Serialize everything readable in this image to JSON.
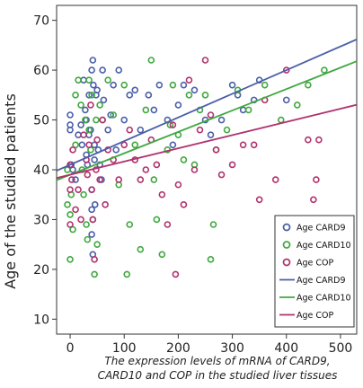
{
  "chart_data": {
    "type": "scatter",
    "xlabel_lines": [
      "The expression levels of mRNA of CARD9,",
      "CARD10 and COP in the studied liver tissues"
    ],
    "ylabel": "Age of the studied patients",
    "xlim": [
      -25,
      530
    ],
    "ylim": [
      7,
      73
    ],
    "xticks": [
      0,
      100,
      200,
      300,
      400,
      500
    ],
    "yticks": [
      10,
      20,
      30,
      40,
      50,
      60,
      70
    ],
    "xtick_labels": [
      "0",
      "100",
      "200",
      "300",
      "400",
      "500"
    ],
    "ytick_labels": [
      "10",
      "20",
      "30",
      "40",
      "50",
      "60",
      "70"
    ],
    "grid": false,
    "legend_position": "bottom-right",
    "series": [
      {
        "name": "Age CARD9",
        "color": "#4a5fa8",
        "marker": "circle-open",
        "points": [
          [
            0,
            51
          ],
          [
            0,
            49
          ],
          [
            0,
            48
          ],
          [
            2,
            41
          ],
          [
            5,
            40
          ],
          [
            10,
            38
          ],
          [
            15,
            47
          ],
          [
            20,
            49
          ],
          [
            22,
            45
          ],
          [
            25,
            58
          ],
          [
            28,
            52
          ],
          [
            30,
            50
          ],
          [
            30,
            43
          ],
          [
            32,
            41
          ],
          [
            35,
            47
          ],
          [
            35,
            55
          ],
          [
            38,
            48
          ],
          [
            40,
            60
          ],
          [
            40,
            36
          ],
          [
            40,
            32
          ],
          [
            40,
            27
          ],
          [
            42,
            62
          ],
          [
            42,
            23
          ],
          [
            43,
            57
          ],
          [
            45,
            42
          ],
          [
            45,
            45
          ],
          [
            46,
            33
          ],
          [
            48,
            55
          ],
          [
            50,
            56
          ],
          [
            52,
            44
          ],
          [
            55,
            41
          ],
          [
            58,
            38
          ],
          [
            60,
            60
          ],
          [
            62,
            54
          ],
          [
            70,
            48
          ],
          [
            75,
            51
          ],
          [
            80,
            57
          ],
          [
            85,
            44
          ],
          [
            90,
            60
          ],
          [
            100,
            50
          ],
          [
            110,
            55
          ],
          [
            120,
            56
          ],
          [
            130,
            48
          ],
          [
            145,
            55
          ],
          [
            155,
            52
          ],
          [
            165,
            57
          ],
          [
            180,
            50
          ],
          [
            190,
            45
          ],
          [
            200,
            53
          ],
          [
            210,
            57
          ],
          [
            230,
            56
          ],
          [
            250,
            50
          ],
          [
            260,
            47
          ],
          [
            280,
            50
          ],
          [
            300,
            57
          ],
          [
            310,
            55
          ],
          [
            320,
            52
          ],
          [
            340,
            54
          ],
          [
            350,
            58
          ],
          [
            400,
            54
          ]
        ],
        "fit": {
          "name": "Age CARD9",
          "intercept": 41.0,
          "slope": 0.0475
        }
      },
      {
        "name": "Age CARD10",
        "color": "#3fa83f",
        "marker": "circle-open",
        "points": [
          [
            -5,
            40
          ],
          [
            -5,
            33
          ],
          [
            0,
            22
          ],
          [
            0,
            31
          ],
          [
            2,
            35
          ],
          [
            5,
            28
          ],
          [
            10,
            45
          ],
          [
            10,
            55
          ],
          [
            15,
            58
          ],
          [
            20,
            53
          ],
          [
            22,
            40
          ],
          [
            25,
            35
          ],
          [
            28,
            50
          ],
          [
            30,
            29
          ],
          [
            32,
            26
          ],
          [
            35,
            48
          ],
          [
            35,
            58
          ],
          [
            38,
            44
          ],
          [
            40,
            55
          ],
          [
            42,
            30
          ],
          [
            45,
            19
          ],
          [
            48,
            50
          ],
          [
            50,
            25
          ],
          [
            55,
            53
          ],
          [
            60,
            50
          ],
          [
            70,
            58
          ],
          [
            80,
            51
          ],
          [
            90,
            37
          ],
          [
            100,
            57
          ],
          [
            105,
            19
          ],
          [
            110,
            29
          ],
          [
            120,
            45
          ],
          [
            130,
            24
          ],
          [
            140,
            52
          ],
          [
            150,
            62
          ],
          [
            155,
            38
          ],
          [
            160,
            30
          ],
          [
            170,
            23
          ],
          [
            180,
            44
          ],
          [
            185,
            49
          ],
          [
            190,
            57
          ],
          [
            200,
            47
          ],
          [
            210,
            42
          ],
          [
            220,
            55
          ],
          [
            230,
            41
          ],
          [
            240,
            52
          ],
          [
            250,
            55
          ],
          [
            260,
            22
          ],
          [
            265,
            29
          ],
          [
            270,
            44
          ],
          [
            290,
            48
          ],
          [
            310,
            56
          ],
          [
            330,
            52
          ],
          [
            360,
            57
          ],
          [
            390,
            50
          ],
          [
            420,
            53
          ],
          [
            440,
            57
          ],
          [
            470,
            60
          ]
        ],
        "fit": {
          "name": "Age CARD10",
          "intercept": 39.0,
          "slope": 0.043
        }
      },
      {
        "name": "Age COP",
        "color": "#b0326e",
        "marker": "circle-open",
        "points": [
          [
            0,
            41
          ],
          [
            0,
            36
          ],
          [
            0,
            29
          ],
          [
            3,
            38
          ],
          [
            5,
            44
          ],
          [
            10,
            32
          ],
          [
            15,
            36
          ],
          [
            20,
            30
          ],
          [
            25,
            47
          ],
          [
            30,
            42
          ],
          [
            32,
            39
          ],
          [
            35,
            45
          ],
          [
            38,
            53
          ],
          [
            40,
            36
          ],
          [
            42,
            30
          ],
          [
            45,
            22
          ],
          [
            48,
            40
          ],
          [
            50,
            46
          ],
          [
            55,
            38
          ],
          [
            60,
            50
          ],
          [
            65,
            33
          ],
          [
            70,
            44
          ],
          [
            80,
            42
          ],
          [
            90,
            38
          ],
          [
            100,
            45
          ],
          [
            110,
            48
          ],
          [
            120,
            42
          ],
          [
            130,
            38
          ],
          [
            140,
            40
          ],
          [
            150,
            46
          ],
          [
            160,
            41
          ],
          [
            170,
            35
          ],
          [
            180,
            29
          ],
          [
            190,
            49
          ],
          [
            195,
            19
          ],
          [
            200,
            37
          ],
          [
            210,
            33
          ],
          [
            220,
            58
          ],
          [
            230,
            40
          ],
          [
            240,
            48
          ],
          [
            250,
            62
          ],
          [
            260,
            51
          ],
          [
            270,
            44
          ],
          [
            280,
            39
          ],
          [
            300,
            41
          ],
          [
            320,
            45
          ],
          [
            340,
            45
          ],
          [
            350,
            34
          ],
          [
            360,
            54
          ],
          [
            380,
            38
          ],
          [
            400,
            60
          ],
          [
            420,
            30
          ],
          [
            440,
            46
          ],
          [
            450,
            34
          ],
          [
            455,
            38
          ],
          [
            460,
            46
          ]
        ],
        "fit": {
          "name": "Age COP",
          "intercept": 39.0,
          "slope": 0.0265
        }
      }
    ]
  }
}
